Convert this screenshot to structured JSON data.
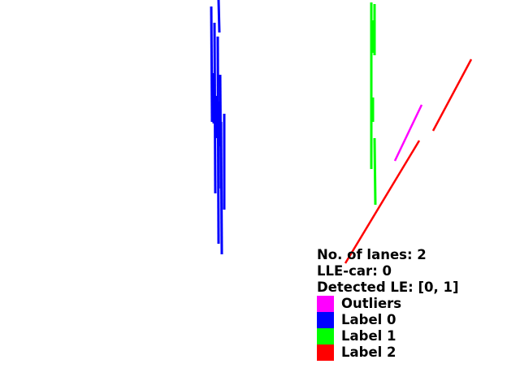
{
  "info": {
    "lanes": "No. of lanes: 2",
    "lle_car": "LLE-car: 0",
    "detected_le": "Detected LE: [0, 1]"
  },
  "legend": [
    {
      "label": "Outliers",
      "color": "#ff00ff"
    },
    {
      "label": "Label 0",
      "color": "#0000ff"
    },
    {
      "label": "Label 1",
      "color": "#00ff00"
    },
    {
      "label": "Label 2",
      "color": "#ff0000"
    }
  ]
}
